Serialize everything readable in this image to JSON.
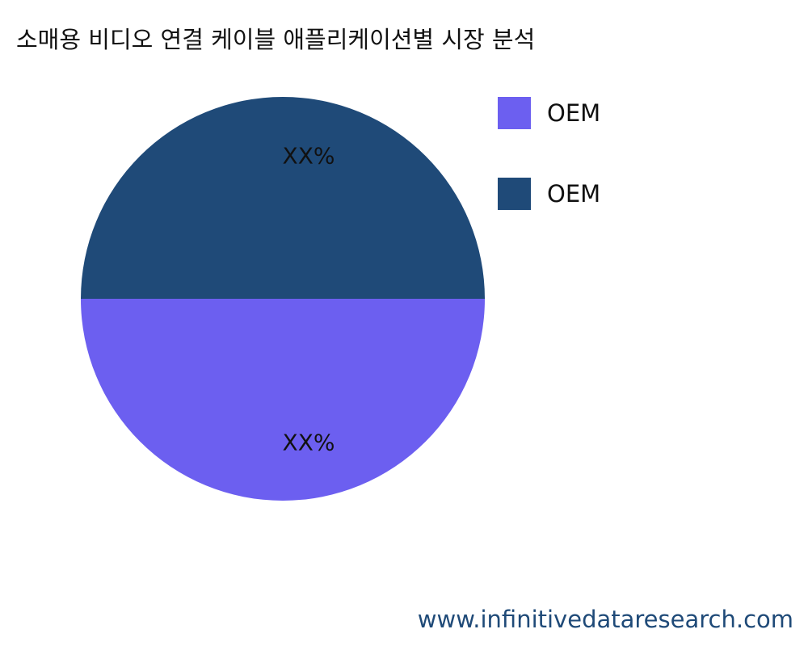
{
  "chart_data": {
    "type": "pie",
    "title": "소매용 비디오 연결 케이블 애플리케이션별 시장 분석",
    "slices": [
      {
        "label": "OEM",
        "value": 50,
        "display": "XX%",
        "color": "#6c5ff0"
      },
      {
        "label": "OEM",
        "value": 50,
        "display": "XX%",
        "color": "#1f4a78"
      }
    ],
    "legend_placement": "top-right"
  },
  "watermark": "www.infinitivedataresearch.com"
}
